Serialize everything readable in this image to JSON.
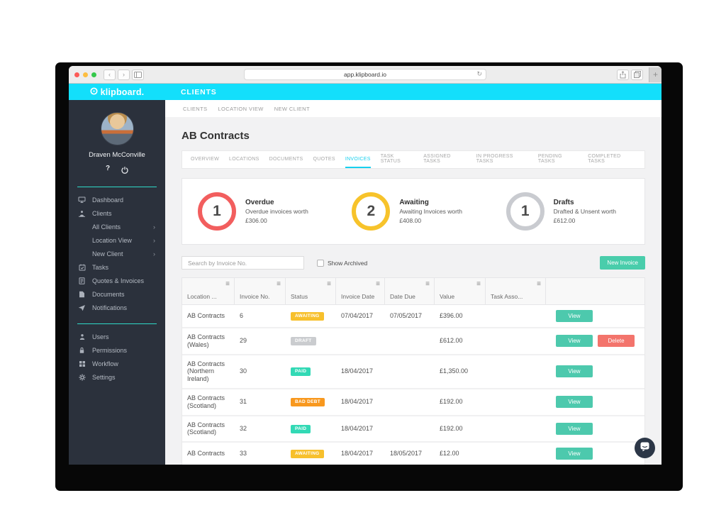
{
  "browser": {
    "url": "app.klipboard.io",
    "new_tab_label": "+"
  },
  "app_header": {
    "logo_text": "klipboard.",
    "nav_title": "CLIENTS",
    "bg_color": "#13dffb"
  },
  "sidebar": {
    "user_name": "Draven McConville",
    "help_label": "?",
    "sections": [
      {
        "items": [
          {
            "label": "Dashboard",
            "icon": "monitor-icon"
          },
          {
            "label": "Clients",
            "icon": "clients-icon"
          },
          {
            "label": "All Clients",
            "child": true,
            "chevron": "›"
          },
          {
            "label": "Location View",
            "child": true,
            "chevron": "›"
          },
          {
            "label": "New Client",
            "child": true,
            "chevron": "›"
          },
          {
            "label": "Tasks",
            "icon": "calendar-icon"
          },
          {
            "label": "Quotes & Invoices",
            "icon": "invoice-icon"
          },
          {
            "label": "Documents",
            "icon": "document-icon"
          },
          {
            "label": "Notifications",
            "icon": "paper-plane-icon"
          }
        ]
      },
      {
        "items": [
          {
            "label": "Users",
            "icon": "user-icon"
          },
          {
            "label": "Permissions",
            "icon": "lock-icon"
          },
          {
            "label": "Workflow",
            "icon": "grid-icon"
          },
          {
            "label": "Settings",
            "icon": "gear-icon"
          }
        ]
      }
    ]
  },
  "breadcrumb": [
    "CLIENTS",
    "LOCATION VIEW",
    "NEW CLIENT"
  ],
  "page_title": "AB Contracts",
  "tabs": [
    {
      "label": "OVERVIEW"
    },
    {
      "label": "LOCATIONS"
    },
    {
      "label": "DOCUMENTS"
    },
    {
      "label": "QUOTES"
    },
    {
      "label": "INVOICES",
      "active": true
    },
    {
      "label": "TASK STATUS"
    },
    {
      "label": "ASSIGNED TASKS"
    },
    {
      "label": "IN PROGRESS TASKS"
    },
    {
      "label": "PENDING TASKS"
    },
    {
      "label": "COMPLETED TASKS"
    }
  ],
  "stats": [
    {
      "count": "1",
      "title": "Overdue",
      "line1": "Overdue invoices worth",
      "line2": "£306.00",
      "ring_color": "#f25e5e"
    },
    {
      "count": "2",
      "title": "Awaiting",
      "line1": "Awaiting Invoices worth",
      "line2": "£408.00",
      "ring_color": "#f7c32b"
    },
    {
      "count": "1",
      "title": "Drafts",
      "line1": "Drafted & Unsent worth",
      "line2": "£612.00",
      "ring_color": "#c9cbd0"
    }
  ],
  "toolbar": {
    "search_placeholder": "Search by Invoice No.",
    "show_archived_label": "Show Archived",
    "new_invoice_label": "New Invoice",
    "new_invoice_color": "#49cdab"
  },
  "table": {
    "columns": [
      "Location ...",
      "Invoice No.",
      "Status",
      "Invoice Date",
      "Date Due",
      "Value",
      "Task Asso..."
    ],
    "status_colors": {
      "AWAITING": "#f7c02c",
      "DRAFT": "#cacccf",
      "PAID": "#32d9b5",
      "BAD DEBT": "#f8981e"
    },
    "action_colors": {
      "View": "#4dc9ad",
      "Delete": "#f3746c"
    },
    "rows": [
      {
        "location": "AB Contracts",
        "invoice_no": "6",
        "status": "AWAITING",
        "invoice_date": "07/04/2017",
        "date_due": "07/05/2017",
        "value": "£396.00",
        "task": "",
        "actions": [
          "View"
        ]
      },
      {
        "location": "AB Contracts (Wales)",
        "invoice_no": "29",
        "status": "DRAFT",
        "invoice_date": "",
        "date_due": "",
        "value": "£612.00",
        "task": "",
        "actions": [
          "View",
          "Delete"
        ]
      },
      {
        "location": "AB Contracts (Northern Ireland)",
        "invoice_no": "30",
        "status": "PAID",
        "invoice_date": "18/04/2017",
        "date_due": "",
        "value": "£1,350.00",
        "task": "",
        "actions": [
          "View"
        ]
      },
      {
        "location": "AB Contracts (Scotland)",
        "invoice_no": "31",
        "status": "BAD DEBT",
        "invoice_date": "18/04/2017",
        "date_due": "",
        "value": "£192.00",
        "task": "",
        "actions": [
          "View"
        ]
      },
      {
        "location": "AB Contracts (Scotland)",
        "invoice_no": "32",
        "status": "PAID",
        "invoice_date": "18/04/2017",
        "date_due": "",
        "value": "£192.00",
        "task": "",
        "actions": [
          "View"
        ]
      },
      {
        "location": "AB Contracts",
        "invoice_no": "33",
        "status": "AWAITING",
        "invoice_date": "18/04/2017",
        "date_due": "18/05/2017",
        "value": "£12.00",
        "task": "",
        "actions": [
          "View"
        ]
      }
    ]
  }
}
